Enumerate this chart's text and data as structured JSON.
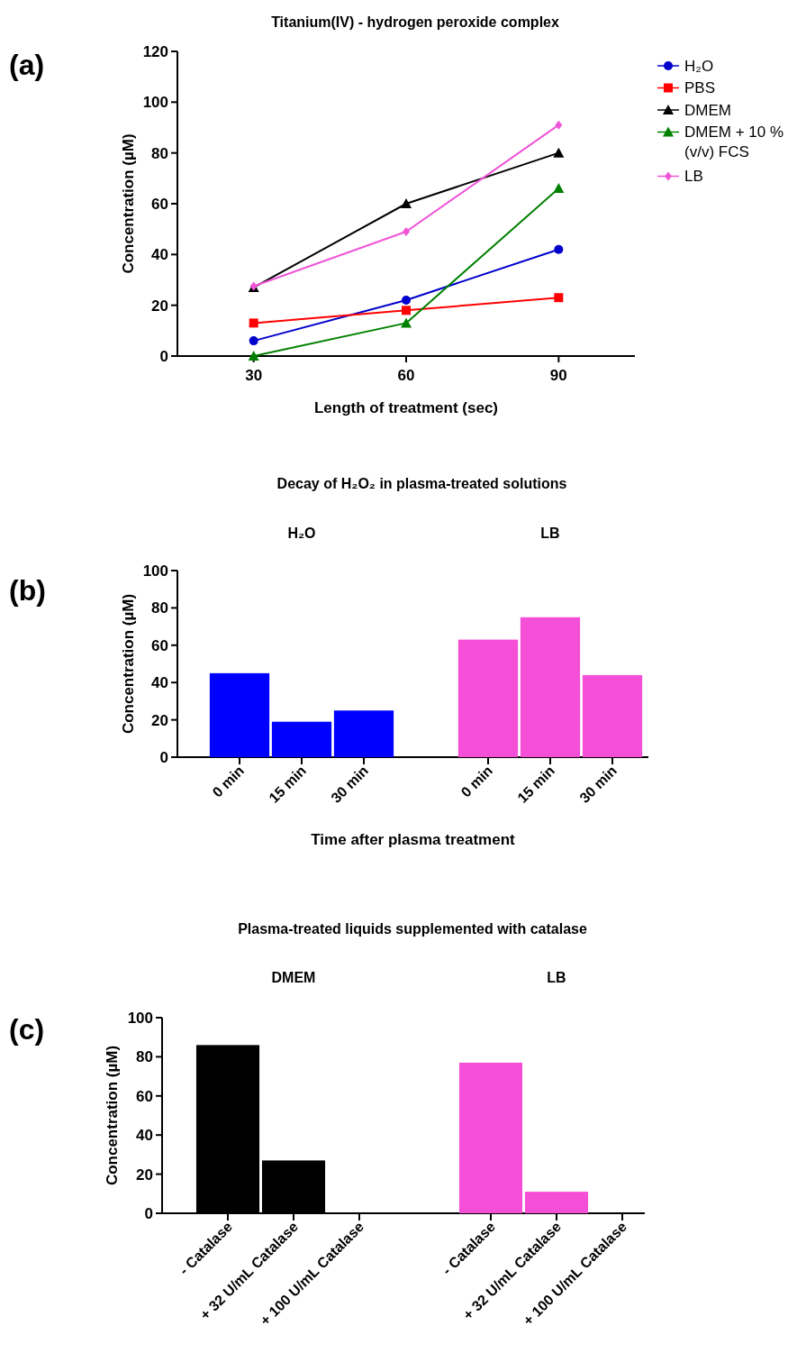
{
  "chart_data": [
    {
      "type": "line",
      "title": "Titanium(IV) - hydrogen peroxide complex",
      "xlabel": "Length of treatment (sec)",
      "ylabel": "Concentration (µM)",
      "x": [
        30,
        60,
        90
      ],
      "xlim": [
        15,
        105
      ],
      "xticks": [
        30,
        60,
        90
      ],
      "ylim": [
        0,
        120
      ],
      "yticks": [
        0,
        20,
        40,
        60,
        80,
        100,
        120
      ],
      "legend": "top right",
      "annotations": [
        "(a)"
      ],
      "series": [
        {
          "name": "H₂O",
          "color": "#0000cc",
          "marker": "circle",
          "values": [
            6,
            22,
            42
          ]
        },
        {
          "name": "PBS",
          "color": "#ff0000",
          "marker": "square",
          "values": [
            13,
            18,
            23
          ]
        },
        {
          "name": "DMEM",
          "color": "#000000",
          "marker": "triangle",
          "values": [
            27,
            60,
            80
          ]
        },
        {
          "name": "DMEM + 10 % (v/v) FCS",
          "color": "#008000",
          "marker": "triangle",
          "values": [
            0,
            13,
            66
          ]
        },
        {
          "name": "LB",
          "color": "#f055d8",
          "marker": "diamond",
          "values": [
            27.5,
            49,
            91
          ]
        }
      ]
    },
    {
      "type": "bar",
      "title": "Decay of H₂O₂ in plasma-treated solutions",
      "xlabel": "Time after plasma treatment",
      "ylabel": "Concentration (µM)",
      "categories": [
        "0 min",
        "15 min",
        "30 min",
        "0 min",
        "15 min",
        "30 min"
      ],
      "ylim": [
        0,
        100
      ],
      "yticks": [
        0,
        20,
        40,
        60,
        80,
        100
      ],
      "annotations": [
        "(b)",
        "H₂O",
        "LB"
      ],
      "series": [
        {
          "color": "#0000ff",
          "values": [
            45,
            19,
            25,
            null,
            null,
            null
          ]
        },
        {
          "color": "#f44fd6",
          "values": [
            null,
            null,
            null,
            63,
            75,
            44
          ]
        }
      ]
    },
    {
      "type": "bar",
      "title": "Plasma-treated liquids supplemented with catalase",
      "ylabel": "Concentration (µM)",
      "categories": [
        "- Catalase",
        "+ 32 U/mL Catalase",
        "+ 100 U/mL Catalase",
        "- Catalase",
        "+ 32 U/mL Catalase",
        "+ 100 U/mL Catalase"
      ],
      "ylim": [
        0,
        100
      ],
      "yticks": [
        0,
        20,
        40,
        60,
        80,
        100
      ],
      "annotations": [
        "(c)",
        "DMEM",
        "LB"
      ],
      "series": [
        {
          "color": "#000000",
          "values": [
            86,
            27,
            0,
            null,
            null,
            null
          ]
        },
        {
          "color": "#f44fd6",
          "values": [
            null,
            null,
            null,
            77,
            11,
            0
          ]
        }
      ]
    }
  ]
}
